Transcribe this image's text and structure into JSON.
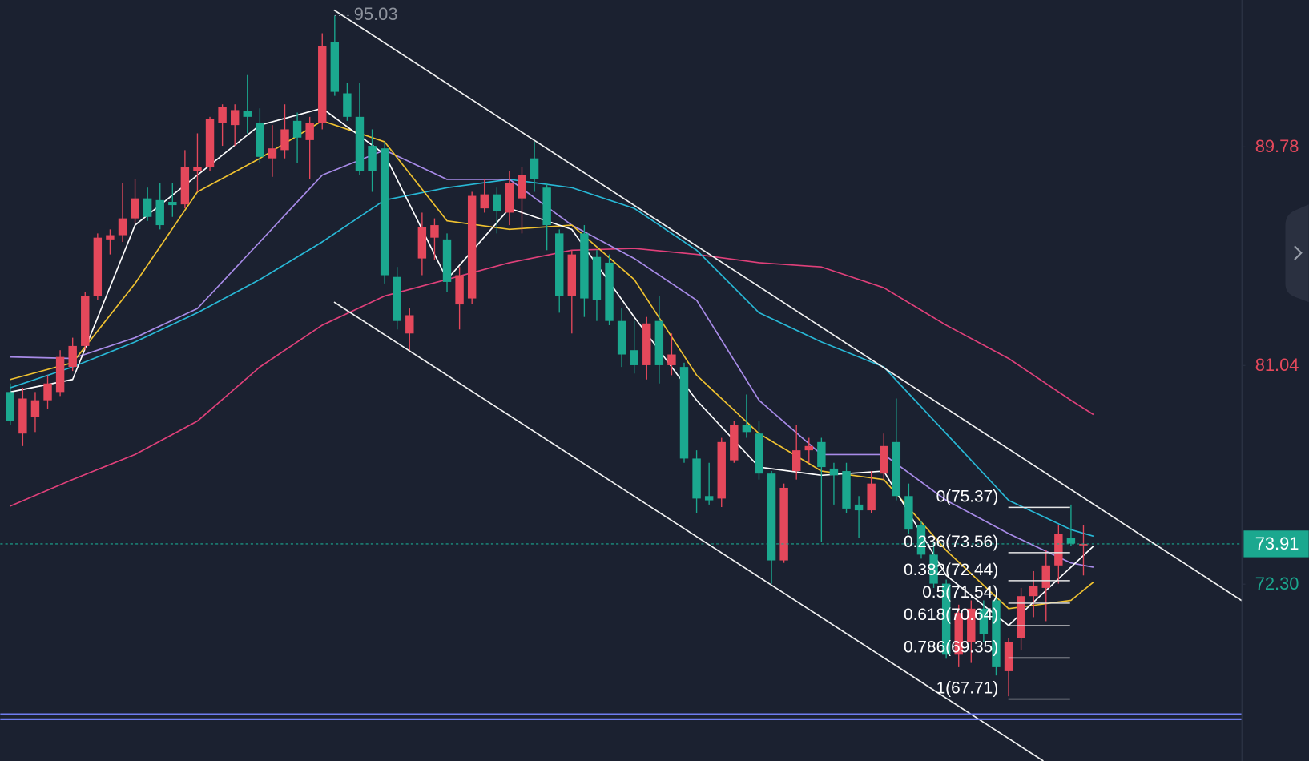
{
  "chart_data": {
    "type": "candlestick",
    "ylim": [
      65.23,
      95.65
    ],
    "xlim": [
      -0.8,
      98.7
    ],
    "yticks": [
      89.78,
      81.04,
      {
        "value": 72.3,
        "label": "72.30"
      }
    ],
    "last_price": 73.91,
    "up_color": "#e5485b",
    "down_color": "#1ba88f",
    "candles": [
      [
        79.98,
        80.32,
        78.65,
        78.82
      ],
      [
        78.32,
        80.15,
        77.82,
        79.72
      ],
      [
        78.98,
        79.98,
        78.38,
        79.65
      ],
      [
        79.65,
        80.65,
        79.32,
        80.32
      ],
      [
        79.98,
        81.65,
        79.82,
        81.38
      ],
      [
        80.98,
        82.15,
        80.82,
        81.82
      ],
      [
        81.82,
        83.98,
        81.65,
        83.82
      ],
      [
        83.82,
        86.32,
        83.65,
        86.15
      ],
      [
        86.08,
        86.48,
        85.48,
        86.25
      ],
      [
        86.25,
        88.32,
        85.98,
        86.92
      ],
      [
        86.92,
        88.48,
        86.72,
        87.72
      ],
      [
        87.72,
        88.15,
        86.82,
        86.98
      ],
      [
        87.65,
        88.32,
        86.48,
        86.65
      ],
      [
        87.58,
        88.32,
        86.98,
        87.45
      ],
      [
        87.48,
        89.65,
        87.32,
        88.98
      ],
      [
        88.82,
        90.32,
        87.98,
        88.98
      ],
      [
        88.98,
        90.98,
        88.82,
        90.88
      ],
      [
        90.72,
        91.48,
        89.82,
        91.38
      ],
      [
        90.65,
        91.48,
        89.82,
        91.25
      ],
      [
        91.22,
        92.65,
        90.32,
        90.98
      ],
      [
        90.72,
        91.32,
        89.15,
        89.38
      ],
      [
        89.32,
        90.65,
        88.58,
        89.72
      ],
      [
        89.65,
        91.48,
        89.32,
        90.48
      ],
      [
        90.82,
        91.15,
        89.15,
        90.15
      ],
      [
        90.05,
        90.98,
        88.48,
        90.72
      ],
      [
        90.72,
        94.32,
        90.48,
        93.82
      ],
      [
        93.98,
        95.03,
        91.82,
        91.98
      ],
      [
        91.92,
        92.32,
        90.82,
        90.98
      ],
      [
        90.98,
        92.32,
        88.65,
        88.82
      ],
      [
        89.82,
        90.48,
        87.98,
        88.82
      ],
      [
        89.72,
        89.98,
        84.32,
        84.65
      ],
      [
        84.58,
        84.98,
        82.48,
        82.82
      ],
      [
        82.32,
        83.32,
        81.65,
        83.05
      ],
      [
        85.32,
        87.15,
        84.65,
        86.58
      ],
      [
        86.15,
        86.92,
        85.25,
        86.65
      ],
      [
        86.08,
        86.32,
        83.98,
        84.38
      ],
      [
        83.48,
        84.98,
        82.48,
        84.65
      ],
      [
        83.72,
        87.98,
        83.48,
        87.82
      ],
      [
        87.32,
        88.48,
        87.15,
        87.88
      ],
      [
        87.88,
        88.15,
        86.32,
        87.22
      ],
      [
        87.15,
        88.82,
        86.65,
        88.32
      ],
      [
        87.72,
        88.98,
        86.32,
        88.65
      ],
      [
        89.32,
        89.98,
        87.98,
        88.48
      ],
      [
        88.15,
        88.32,
        85.65,
        86.65
      ],
      [
        86.32,
        86.48,
        83.15,
        83.82
      ],
      [
        83.82,
        85.65,
        82.32,
        85.48
      ],
      [
        86.32,
        86.65,
        82.98,
        83.72
      ],
      [
        85.38,
        85.65,
        82.82,
        83.65
      ],
      [
        85.15,
        85.48,
        82.65,
        82.82
      ],
      [
        82.82,
        83.32,
        80.98,
        81.48
      ],
      [
        81.65,
        82.82,
        80.72,
        81.05
      ],
      [
        81.05,
        82.98,
        80.48,
        82.72
      ],
      [
        82.82,
        83.82,
        80.32,
        81.05
      ],
      [
        81.05,
        82.32,
        80.65,
        81.48
      ],
      [
        80.98,
        81.15,
        77.15,
        77.32
      ],
      [
        77.32,
        77.65,
        75.15,
        75.72
      ],
      [
        75.82,
        77.15,
        75.48,
        75.65
      ],
      [
        75.72,
        78.15,
        75.38,
        77.98
      ],
      [
        77.25,
        78.82,
        77.15,
        78.65
      ],
      [
        78.65,
        79.88,
        78.15,
        78.38
      ],
      [
        78.32,
        78.82,
        76.48,
        76.72
      ],
      [
        76.72,
        76.82,
        72.32,
        73.25
      ],
      [
        73.25,
        76.32,
        73.15,
        76.15
      ],
      [
        76.82,
        78.65,
        76.48,
        77.65
      ],
      [
        77.65,
        78.15,
        77.15,
        77.82
      ],
      [
        77.98,
        78.15,
        73.98,
        76.98
      ],
      [
        76.92,
        77.15,
        75.48,
        76.65
      ],
      [
        76.82,
        77.15,
        75.15,
        75.32
      ],
      [
        75.48,
        75.82,
        74.15,
        75.25
      ],
      [
        75.25,
        76.82,
        75.15,
        76.32
      ],
      [
        76.72,
        78.32,
        76.48,
        77.82
      ],
      [
        77.98,
        79.72,
        75.65,
        75.82
      ],
      [
        75.82,
        76.32,
        74.32,
        74.48
      ],
      [
        74.65,
        74.82,
        73.32,
        73.48
      ],
      [
        73.48,
        73.98,
        72.15,
        72.32
      ],
      [
        72.32,
        72.48,
        69.32,
        69.48
      ],
      [
        69.48,
        71.48,
        68.98,
        71.15
      ],
      [
        69.98,
        71.65,
        69.15,
        71.32
      ],
      [
        71.32,
        71.65,
        69.98,
        70.32
      ],
      [
        71.65,
        71.82,
        68.65,
        68.98
      ],
      [
        68.82,
        70.15,
        67.82,
        69.98
      ],
      [
        70.15,
        72.15,
        69.65,
        71.82
      ],
      [
        71.82,
        72.82,
        70.98,
        72.22
      ],
      [
        72.15,
        73.65,
        70.82,
        73.05
      ],
      [
        73.05,
        74.65,
        72.32,
        74.32
      ],
      [
        74.15,
        75.48,
        73.82,
        73.92
      ],
      [
        73.85,
        74.65,
        72.65,
        73.91
      ]
    ],
    "peak": {
      "index": 26,
      "value": 95.03
    },
    "moving_averages": [
      {
        "color": "#e0407a",
        "x": [
          0,
          5,
          10,
          15,
          20,
          25,
          30,
          35,
          40,
          45,
          50,
          55,
          60,
          65,
          70,
          75,
          80,
          85,
          86.8
        ],
        "values": [
          75.42,
          76.48,
          77.48,
          78.82,
          80.98,
          82.65,
          83.82,
          84.48,
          85.15,
          85.65,
          85.72,
          85.48,
          85.15,
          84.98,
          84.15,
          82.65,
          81.32,
          79.65,
          79.08
        ]
      },
      {
        "color": "#28b8d6",
        "x": [
          0,
          5,
          10,
          15,
          20,
          25,
          30,
          35,
          40,
          45,
          50,
          55,
          60,
          65,
          70,
          75,
          80,
          85,
          86.8
        ],
        "values": [
          80.15,
          80.98,
          81.98,
          83.15,
          84.48,
          85.98,
          87.65,
          88.15,
          88.48,
          88.15,
          87.32,
          85.65,
          83.15,
          81.98,
          80.98,
          78.32,
          75.65,
          74.48,
          74.22
        ]
      },
      {
        "color": "#a88be8",
        "x": [
          0,
          5,
          10,
          15,
          20,
          25,
          30,
          35,
          40,
          45,
          50,
          55,
          60,
          65,
          70,
          75,
          80,
          85,
          86.8
        ],
        "values": [
          81.38,
          81.32,
          82.15,
          83.32,
          85.98,
          88.65,
          89.65,
          88.48,
          88.48,
          86.65,
          85.32,
          83.65,
          79.65,
          77.48,
          77.48,
          75.65,
          74.32,
          73.15,
          72.98
        ]
      },
      {
        "color": "#f0c230",
        "x": [
          0,
          5,
          10,
          15,
          20,
          25,
          30,
          35,
          40,
          45,
          50,
          55,
          60,
          65,
          70,
          75,
          80,
          85,
          86.8
        ],
        "values": [
          80.48,
          81.15,
          84.32,
          87.98,
          89.32,
          90.82,
          89.98,
          86.82,
          86.48,
          86.65,
          84.48,
          80.65,
          78.32,
          76.82,
          76.48,
          73.65,
          71.32,
          71.65,
          72.38
        ]
      },
      {
        "color": "#ffffff",
        "x": [
          0,
          5,
          10,
          15,
          20,
          25,
          30,
          35,
          40,
          45,
          50,
          55,
          60,
          65,
          70,
          75,
          80,
          85,
          86.8
        ],
        "values": [
          79.98,
          80.48,
          86.65,
          88.65,
          90.65,
          91.32,
          89.48,
          84.48,
          87.32,
          86.48,
          82.98,
          79.65,
          76.98,
          76.65,
          76.82,
          72.65,
          70.65,
          72.98,
          73.82
        ]
      }
    ],
    "fibonacci": [
      {
        "label": "0(75.37)",
        "price": 75.37
      },
      {
        "label": "0.236(73.56)",
        "price": 73.56
      },
      {
        "label": "0.382(72.44)",
        "price": 72.44
      },
      {
        "label": "0.5(71.54)",
        "price": 71.54
      },
      {
        "label": "0.618(70.64)",
        "price": 70.64
      },
      {
        "label": "0.786(69.35)",
        "price": 69.35
      },
      {
        "label": "1(67.71)",
        "price": 67.71
      }
    ]
  }
}
